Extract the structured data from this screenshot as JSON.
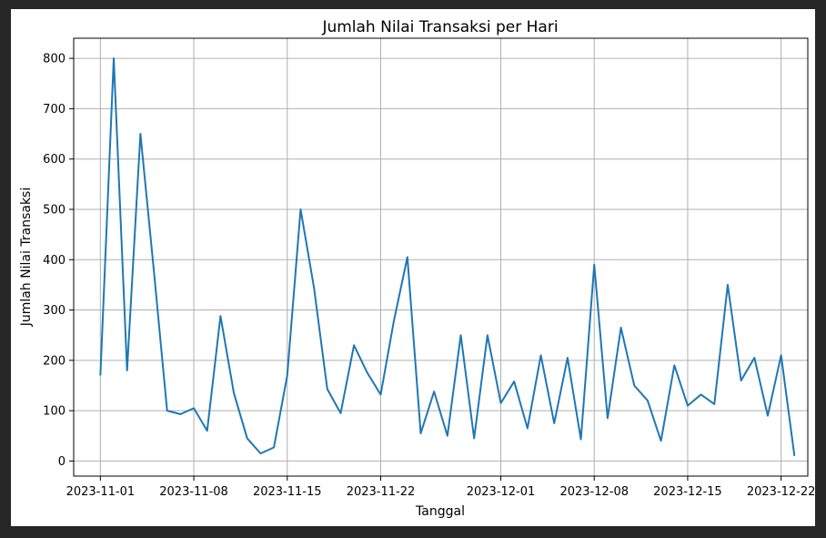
{
  "chart_data": {
    "type": "line",
    "title": "Jumlah Nilai Transaksi per Hari",
    "xlabel": "Tanggal",
    "ylabel": "Jumlah Nilai Transaksi",
    "grid": true,
    "line_color": "#1f77b4",
    "ylim": [
      -30,
      840
    ],
    "xlim": [
      "2023-10-30",
      "2023-12-24"
    ],
    "x_ticks": [
      "2023-11-01",
      "2023-11-08",
      "2023-11-15",
      "2023-11-22",
      "2023-12-01",
      "2023-12-08",
      "2023-12-15",
      "2023-12-22"
    ],
    "y_ticks": [
      0,
      100,
      200,
      300,
      400,
      500,
      600,
      700,
      800
    ],
    "series": [
      {
        "x": [
          "2023-11-01",
          "2023-11-02",
          "2023-11-03",
          "2023-11-04",
          "2023-11-05",
          "2023-11-06",
          "2023-11-07",
          "2023-11-08",
          "2023-11-09",
          "2023-11-10",
          "2023-11-11",
          "2023-11-12",
          "2023-11-13",
          "2023-11-14",
          "2023-11-15",
          "2023-11-16",
          "2023-11-17",
          "2023-11-18",
          "2023-11-19",
          "2023-11-20",
          "2023-11-21",
          "2023-11-22",
          "2023-11-23",
          "2023-11-24",
          "2023-11-25",
          "2023-11-26",
          "2023-11-27",
          "2023-11-28",
          "2023-11-29",
          "2023-11-30",
          "2023-12-01",
          "2023-12-02",
          "2023-12-03",
          "2023-12-04",
          "2023-12-05",
          "2023-12-06",
          "2023-12-07",
          "2023-12-08",
          "2023-12-09",
          "2023-12-10",
          "2023-12-11",
          "2023-12-12",
          "2023-12-13",
          "2023-12-14",
          "2023-12-15",
          "2023-12-16",
          "2023-12-17",
          "2023-12-18",
          "2023-12-19",
          "2023-12-20",
          "2023-12-21",
          "2023-12-22",
          "2023-12-23"
        ],
        "values": [
          170,
          800,
          180,
          650,
          380,
          100,
          93,
          105,
          60,
          288,
          135,
          45,
          15,
          27,
          170,
          500,
          345,
          143,
          95,
          230,
          175,
          132,
          280,
          405,
          55,
          138,
          50,
          250,
          45,
          250,
          115,
          158,
          65,
          210,
          75,
          205,
          43,
          390,
          85,
          265,
          150,
          120,
          40,
          190,
          110,
          132,
          113,
          350,
          160,
          205,
          90,
          210,
          10
        ]
      }
    ]
  }
}
